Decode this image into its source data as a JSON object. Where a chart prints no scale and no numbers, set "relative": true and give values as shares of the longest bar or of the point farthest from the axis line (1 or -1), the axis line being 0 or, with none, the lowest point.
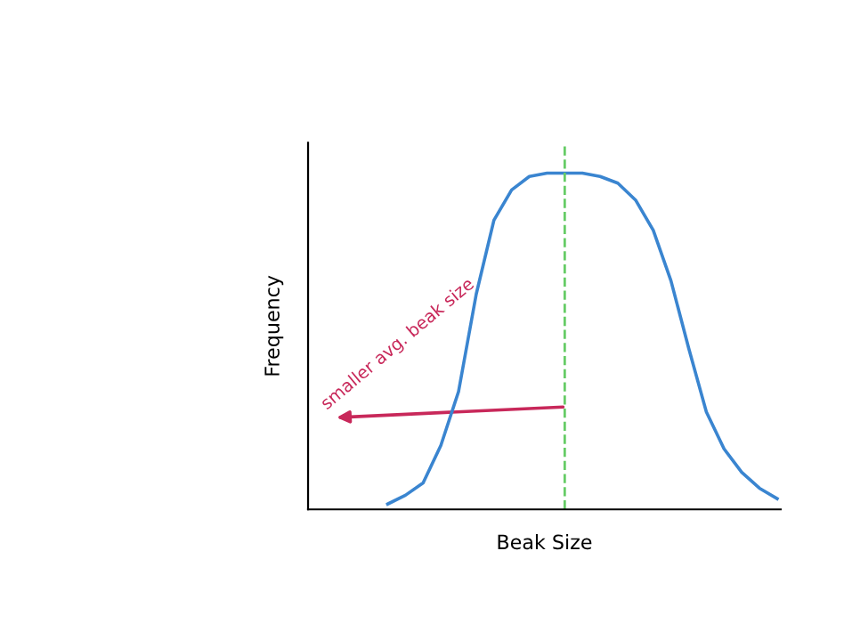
{
  "chart_data": {
    "type": "line",
    "relative": true,
    "xlabel": "Beak Size",
    "ylabel": "Frequency",
    "categories": [
      null,
      null,
      null,
      null,
      null,
      null,
      null,
      null,
      null,
      null,
      null,
      null,
      null,
      null,
      null,
      null,
      null,
      null,
      null,
      null,
      null,
      null,
      null,
      null,
      null,
      null,
      null
    ],
    "series": [
      {
        "color": "#3a85d0",
        "values": [
          null,
          null,
          null,
          null,
          0.016,
          0.042,
          0.079,
          0.19,
          0.35,
          0.64,
          0.86,
          0.95,
          0.99,
          1,
          1,
          1,
          0.99,
          0.97,
          0.92,
          0.83,
          0.68,
          0.48,
          0.29,
          0.18,
          0.11,
          0.063,
          0.032
        ]
      }
    ],
    "annotations": [
      "smaller avg. beak size"
    ],
    "grid": false,
    "legend": false,
    "marker": "none",
    "line_style": "solid",
    "tick_labels": false
  }
}
